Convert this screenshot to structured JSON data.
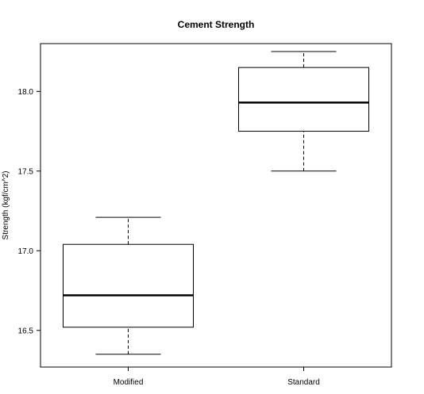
{
  "chart_data": {
    "type": "box",
    "title": "Cement Strength",
    "ylabel": "Strength (kgf/cm^2)",
    "xlabel": "",
    "ylim": [
      16.27,
      18.3
    ],
    "yticks": [
      "16.5",
      "17.0",
      "17.5",
      "18.0"
    ],
    "categories": [
      "Modified",
      "Standard"
    ],
    "boxes": [
      {
        "name": "Modified",
        "whisker_low": 16.35,
        "q1": 16.52,
        "median": 16.72,
        "q3": 17.04,
        "whisker_high": 17.21
      },
      {
        "name": "Standard",
        "whisker_low": 17.5,
        "q1": 17.75,
        "median": 17.93,
        "q3": 18.15,
        "whisker_high": 18.25
      }
    ],
    "grid": false,
    "colors": {
      "stroke": "#000000",
      "box_fill": "#ffffff"
    }
  }
}
